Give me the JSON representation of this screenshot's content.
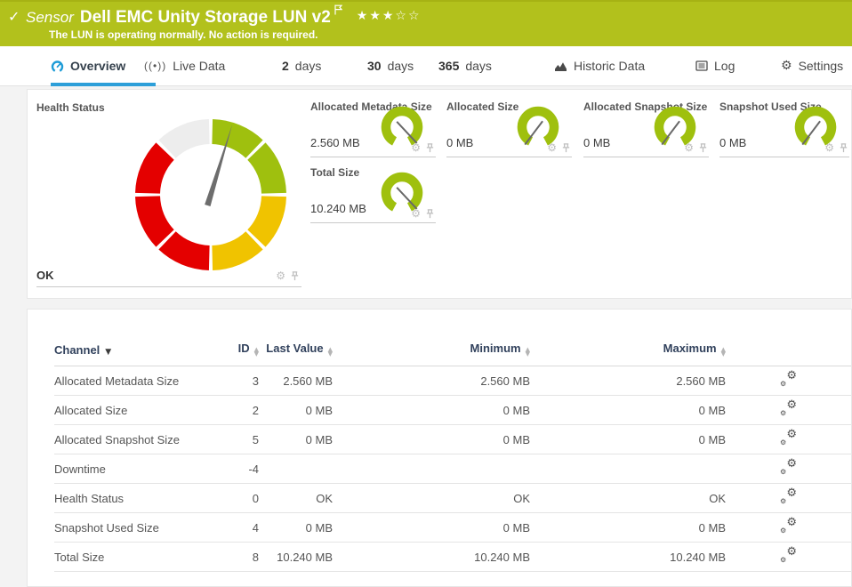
{
  "colors": {
    "header_green": "#b2c11c",
    "accent_blue": "#2d9fd9",
    "gauge_green": "#9fc00e",
    "gauge_yellow": "#f0c300",
    "gauge_red": "#e40000",
    "gauge_gray": "#ededed",
    "needle": "#6d6d6d"
  },
  "icons": {
    "gear": "⚙",
    "sort_up": "▲",
    "sort_down": "▼",
    "caret_down": "▼",
    "live_glyph": "((•))"
  },
  "header": {
    "check_icon": "✓",
    "kind_label": "Sensor",
    "title": "Dell EMC Unity Storage LUN v2",
    "stars_filled": "★★★",
    "stars_empty": "☆☆",
    "status_message": "The LUN is operating normally. No action is required."
  },
  "tabs": {
    "overview": "Overview",
    "live_data": "Live Data",
    "d2_num": "2",
    "d2_unit": "days",
    "d30_num": "30",
    "d30_unit": "days",
    "d365_num": "365",
    "d365_unit": "days",
    "historic": "Historic Data",
    "log": "Log",
    "settings": "Settings"
  },
  "health_gauge": {
    "label": "Health Status",
    "status": "OK",
    "needle_angle_deg": 17,
    "segments": [
      {
        "start": 0,
        "end": 45,
        "color": "#9fc00e"
      },
      {
        "start": 45,
        "end": 90,
        "color": "#9fc00e"
      },
      {
        "start": 90,
        "end": 135,
        "color": "#f0c300"
      },
      {
        "start": 135,
        "end": 180,
        "color": "#f0c300"
      },
      {
        "start": 180,
        "end": 225,
        "color": "#e40000"
      },
      {
        "start": 225,
        "end": 270,
        "color": "#e40000"
      },
      {
        "start": 270,
        "end": 315,
        "color": "#e40000"
      },
      {
        "start": 315,
        "end": 360,
        "color": "#ededed"
      }
    ]
  },
  "mini_gauges": [
    {
      "title": "Allocated Metadata Size",
      "value": "2.560 MB",
      "needle_angle_deg": 137
    },
    {
      "title": "Allocated Size",
      "value": "0 MB",
      "needle_angle_deg": 217
    },
    {
      "title": "Allocated Snapshot Size",
      "value": "0 MB",
      "needle_angle_deg": 217
    },
    {
      "title": "Snapshot Used Size",
      "value": "0 MB",
      "needle_angle_deg": 217
    },
    {
      "title": "Total Size",
      "value": "10.240 MB",
      "needle_angle_deg": 137
    }
  ],
  "table": {
    "columns": {
      "channel": "Channel",
      "id": "ID",
      "last": "Last Value",
      "min": "Minimum",
      "max": "Maximum"
    },
    "rows": [
      {
        "channel": "Allocated Metadata Size",
        "id": "3",
        "last": "2.560 MB",
        "min": "2.560 MB",
        "max": "2.560 MB"
      },
      {
        "channel": "Allocated Size",
        "id": "2",
        "last": "0 MB",
        "min": "0 MB",
        "max": "0 MB"
      },
      {
        "channel": "Allocated Snapshot Size",
        "id": "5",
        "last": "0 MB",
        "min": "0 MB",
        "max": "0 MB"
      },
      {
        "channel": "Downtime",
        "id": "-4",
        "last": "",
        "min": "",
        "max": ""
      },
      {
        "channel": "Health Status",
        "id": "0",
        "last": "OK",
        "min": "OK",
        "max": "OK"
      },
      {
        "channel": "Snapshot Used Size",
        "id": "4",
        "last": "0 MB",
        "min": "0 MB",
        "max": "0 MB"
      },
      {
        "channel": "Total Size",
        "id": "8",
        "last": "10.240 MB",
        "min": "10.240 MB",
        "max": "10.240 MB"
      }
    ]
  }
}
